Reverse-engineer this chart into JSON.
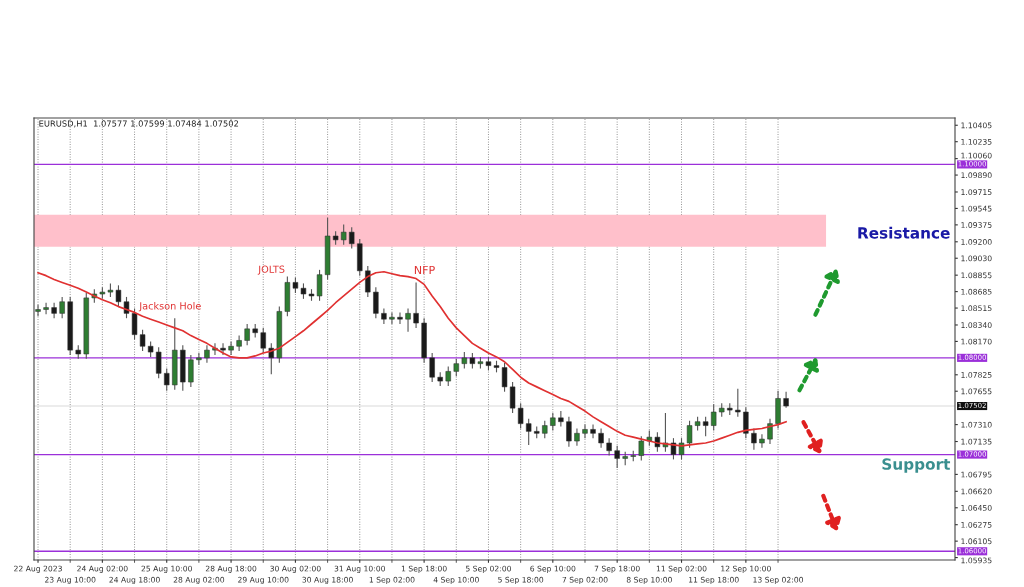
{
  "chart_data": {
    "type": "candlestick",
    "categories": [
      "22 Aug 2023",
      null,
      null,
      null,
      "23 Aug 10:00",
      null,
      null,
      null,
      "24 Aug 02:00",
      null,
      null,
      null,
      "24 Aug 18:00",
      null,
      null,
      null,
      "25 Aug 10:00",
      null,
      null,
      null,
      "28 Aug 02:00",
      null,
      null,
      null,
      "28 Aug 18:00",
      null,
      null,
      null,
      "29 Aug 10:00",
      null,
      null,
      null,
      "30 Aug 02:00",
      null,
      null,
      null,
      "30 Aug 18:00",
      null,
      null,
      null,
      "31 Aug 10:00",
      null,
      null,
      null,
      "1 Sep 02:00",
      null,
      null,
      null,
      "1 Sep 18:00",
      null,
      null,
      null,
      "4 Sep 10:00",
      null,
      null,
      null,
      "5 Sep 02:00",
      null,
      null,
      null,
      "5 Sep 18:00",
      null,
      null,
      null,
      "6 Sep 10:00",
      null,
      null,
      null,
      "7 Sep 02:00",
      null,
      null,
      null,
      "7 Sep 18:00",
      null,
      null,
      null,
      "8 Sep 10:00",
      null,
      null,
      null,
      "11 Sep 02:00",
      null,
      null,
      null,
      "11 Sep 18:00",
      null,
      null,
      null,
      "12 Sep 10:00",
      null,
      null,
      null,
      "13 Sep 02:00",
      null,
      null,
      null,
      null,
      null,
      null,
      null,
      null,
      null,
      null,
      null,
      null,
      null,
      null,
      null,
      null,
      null,
      null,
      null,
      null,
      null
    ],
    "ohlc": [
      [
        1.0848,
        1.0855,
        1.0843,
        1.085
      ],
      [
        1.085,
        1.0857,
        1.0845,
        1.0852
      ],
      [
        1.0852,
        1.0857,
        1.0841,
        1.0846
      ],
      [
        1.0846,
        1.0863,
        1.0841,
        1.0858
      ],
      [
        1.0858,
        1.0863,
        1.0803,
        1.0808
      ],
      [
        1.0808,
        1.0813,
        1.0799,
        1.0804
      ],
      [
        1.0804,
        1.0867,
        1.0799,
        1.0862
      ],
      [
        1.0862,
        1.0871,
        1.0857,
        1.0866
      ],
      [
        1.0866,
        1.0873,
        1.0861,
        1.0868
      ],
      [
        1.0868,
        1.0877,
        1.0863,
        1.087
      ],
      [
        1.087,
        1.0875,
        1.0853,
        1.0858
      ],
      [
        1.0858,
        1.0863,
        1.0841,
        1.0846
      ],
      [
        1.0846,
        1.0851,
        1.0819,
        1.0824
      ],
      [
        1.0824,
        1.0829,
        1.0807,
        1.0812
      ],
      [
        1.0812,
        1.0817,
        1.0801,
        1.0806
      ],
      [
        1.0806,
        1.0811,
        1.0779,
        1.0784
      ],
      [
        1.0784,
        1.0789,
        1.0766,
        1.0772
      ],
      [
        1.0772,
        1.0841,
        1.0767,
        1.0808
      ],
      [
        1.0808,
        1.0813,
        1.0766,
        1.0775
      ],
      [
        1.0775,
        1.0803,
        1.077,
        1.0798
      ],
      [
        1.0798,
        1.0805,
        1.0793,
        1.08
      ],
      [
        1.08,
        1.0813,
        1.0795,
        1.0808
      ],
      [
        1.0808,
        1.0815,
        1.0803,
        1.081
      ],
      [
        1.081,
        1.0815,
        1.0803,
        1.0808
      ],
      [
        1.0808,
        1.0817,
        1.0803,
        1.0812
      ],
      [
        1.0812,
        1.0823,
        1.0807,
        1.0818
      ],
      [
        1.0818,
        1.0835,
        1.0813,
        1.083
      ],
      [
        1.083,
        1.0835,
        1.0821,
        1.0826
      ],
      [
        1.0826,
        1.0831,
        1.0805,
        1.081
      ],
      [
        1.081,
        1.0815,
        1.0783,
        1.08
      ],
      [
        1.08,
        1.0853,
        1.0795,
        1.0848
      ],
      [
        1.0848,
        1.0884,
        1.0843,
        1.0878
      ],
      [
        1.0878,
        1.0883,
        1.0867,
        1.0872
      ],
      [
        1.0872,
        1.0877,
        1.0861,
        1.0866
      ],
      [
        1.0866,
        1.0871,
        1.0859,
        1.0864
      ],
      [
        1.0864,
        1.0891,
        1.0859,
        1.0886
      ],
      [
        1.0886,
        1.0945,
        1.0881,
        1.0926
      ],
      [
        1.0926,
        1.0931,
        1.0917,
        1.0922
      ],
      [
        1.0922,
        1.0938,
        1.0917,
        1.093
      ],
      [
        1.093,
        1.0935,
        1.0913,
        1.0918
      ],
      [
        1.0918,
        1.0923,
        1.0885,
        1.089
      ],
      [
        1.089,
        1.0895,
        1.0863,
        1.0868
      ],
      [
        1.0868,
        1.0873,
        1.0841,
        1.0846
      ],
      [
        1.0846,
        1.0851,
        1.0835,
        1.084
      ],
      [
        1.084,
        1.0847,
        1.0835,
        1.0842
      ],
      [
        1.0842,
        1.0847,
        1.0835,
        1.084
      ],
      [
        1.084,
        1.0851,
        1.0827,
        1.0846
      ],
      [
        1.0846,
        1.0878,
        1.0831,
        1.0836
      ],
      [
        1.0836,
        1.0841,
        1.0795,
        1.08
      ],
      [
        1.08,
        1.0805,
        1.0775,
        1.078
      ],
      [
        1.078,
        1.0785,
        1.0771,
        1.0776
      ],
      [
        1.0776,
        1.0791,
        1.0771,
        1.0786
      ],
      [
        1.0786,
        1.0799,
        1.0781,
        1.0794
      ],
      [
        1.0794,
        1.0806,
        1.0789,
        1.08
      ],
      [
        1.08,
        1.0805,
        1.0789,
        1.0794
      ],
      [
        1.0794,
        1.0801,
        1.0789,
        1.0796
      ],
      [
        1.0796,
        1.0801,
        1.0787,
        1.0792
      ],
      [
        1.0792,
        1.0797,
        1.0785,
        1.079
      ],
      [
        1.079,
        1.0795,
        1.0765,
        1.077
      ],
      [
        1.077,
        1.0775,
        1.0743,
        1.0748
      ],
      [
        1.0748,
        1.0753,
        1.0727,
        1.0732
      ],
      [
        1.0732,
        1.0737,
        1.071,
        1.0724
      ],
      [
        1.0724,
        1.0729,
        1.0717,
        1.0722
      ],
      [
        1.0722,
        1.0735,
        1.0717,
        1.073
      ],
      [
        1.073,
        1.0743,
        1.0725,
        1.0738
      ],
      [
        1.0738,
        1.0745,
        1.0729,
        1.0734
      ],
      [
        1.0734,
        1.0739,
        1.0708,
        1.0714
      ],
      [
        1.0714,
        1.0727,
        1.0709,
        1.0722
      ],
      [
        1.0722,
        1.0731,
        1.0717,
        1.0726
      ],
      [
        1.0726,
        1.0731,
        1.0717,
        1.0722
      ],
      [
        1.0722,
        1.0727,
        1.0707,
        1.0712
      ],
      [
        1.0712,
        1.0717,
        1.0699,
        1.0704
      ],
      [
        1.0704,
        1.0709,
        1.0686,
        1.0696
      ],
      [
        1.0696,
        1.0703,
        1.0689,
        1.0698
      ],
      [
        1.0698,
        1.0704,
        1.0693,
        1.0699
      ],
      [
        1.0699,
        1.0719,
        1.0694,
        1.0714
      ],
      [
        1.0714,
        1.0725,
        1.0709,
        1.0718
      ],
      [
        1.0718,
        1.0723,
        1.0703,
        1.0708
      ],
      [
        1.0708,
        1.0743,
        1.0703,
        1.0712
      ],
      [
        1.0712,
        1.0717,
        1.0695,
        1.07
      ],
      [
        1.07,
        1.0717,
        1.0695,
        1.0712
      ],
      [
        1.0712,
        1.0735,
        1.0707,
        1.073
      ],
      [
        1.073,
        1.0739,
        1.0725,
        1.0734
      ],
      [
        1.0734,
        1.0739,
        1.0719,
        1.073
      ],
      [
        1.073,
        1.0752,
        1.0725,
        1.0744
      ],
      [
        1.0744,
        1.0753,
        1.0739,
        1.0748
      ],
      [
        1.0748,
        1.0753,
        1.0741,
        1.0746
      ],
      [
        1.0746,
        1.0768,
        1.0739,
        1.0744
      ],
      [
        1.0744,
        1.0749,
        1.0717,
        1.0722
      ],
      [
        1.0722,
        1.0727,
        1.0705,
        1.0712
      ],
      [
        1.0712,
        1.0721,
        1.0707,
        1.0716
      ],
      [
        1.0716,
        1.0737,
        1.0711,
        1.0732
      ],
      [
        1.0732,
        1.0766,
        1.0727,
        1.0758
      ],
      [
        1.0758,
        1.0765,
        1.07484,
        1.07502
      ],
      null,
      null,
      null,
      null,
      null,
      null,
      null,
      null,
      null,
      null,
      null,
      null,
      null,
      null,
      null,
      null,
      null,
      null,
      null,
      null
    ],
    "series": [
      {
        "type": "line",
        "color": "#e03131",
        "values": [
          1.0888,
          1.0885,
          1.0881,
          1.0878,
          1.0875,
          1.0872,
          1.0868,
          1.0864,
          1.086,
          1.0857,
          1.0853,
          1.085,
          1.0847,
          1.0843,
          1.084,
          1.0837,
          1.0834,
          1.0831,
          1.0828,
          1.0823,
          1.0819,
          1.0815,
          1.081,
          1.0805,
          1.0801,
          1.08,
          1.08,
          1.0802,
          1.0805,
          1.0807,
          1.081,
          1.0816,
          1.0822,
          1.0828,
          1.0835,
          1.0842,
          1.0849,
          1.0857,
          1.0864,
          1.0871,
          1.0878,
          1.0884,
          1.0888,
          1.0889,
          1.0887,
          1.0885,
          1.0884,
          1.0882,
          1.0876,
          1.0864,
          1.0853,
          1.0841,
          1.0831,
          1.0823,
          1.0815,
          1.081,
          1.0805,
          1.0801,
          1.0796,
          1.0788,
          1.078,
          1.0774,
          1.077,
          1.0766,
          1.0762,
          1.0758,
          1.0755,
          1.075,
          1.0745,
          1.0739,
          1.0734,
          1.0729,
          1.0724,
          1.072,
          1.0718,
          1.0716,
          1.0714,
          1.0712,
          1.0711,
          1.071,
          1.0709,
          1.071,
          1.0711,
          1.0712,
          1.0714,
          1.0717,
          1.072,
          1.0723,
          1.0725,
          1.0726,
          1.0727,
          1.0729,
          1.0731,
          1.0734,
          null,
          null,
          null,
          null,
          null,
          null,
          null,
          null,
          null,
          null,
          null,
          null,
          null,
          null,
          null,
          null,
          null,
          null,
          null,
          null
        ]
      }
    ],
    "ylim": [
      1.0591,
      1.1048
    ],
    "yticks": [
      1.10405,
      1.10235,
      {
        "value": 1.1006,
        "label": "1.10060"
      },
      {
        "value": 1.0989,
        "label": "1.09890"
      },
      1.09715,
      1.09545,
      1.09375,
      {
        "value": 1.092,
        "label": "1.09200"
      },
      {
        "value": 1.0903,
        "label": "1.09030"
      },
      1.08855,
      1.08685,
      1.08515,
      {
        "value": 1.0834,
        "label": "1.08340"
      },
      {
        "value": 1.0817,
        "label": "1.08170"
      },
      1.07825,
      1.07655,
      {
        "value": 1.0731,
        "label": "1.07310"
      },
      1.07135,
      1.06795,
      {
        "value": 1.0662,
        "label": "1.06620"
      },
      {
        "value": 1.0645,
        "label": "1.06450"
      },
      1.06275,
      1.06105,
      1.05935
    ],
    "grid": "x",
    "ref_lines": [
      {
        "axis": "y",
        "value": 1.1,
        "label": "1.10000",
        "color": "#9b30d9"
      },
      {
        "axis": "y",
        "value": 1.08,
        "label": "1.08000",
        "color": "#9b30d9"
      },
      {
        "axis": "y",
        "value": 1.07,
        "label": "1.07000",
        "color": "#9b30d9"
      },
      {
        "axis": "y",
        "value": 1.06,
        "label": "1.06000",
        "color": "#9b30d9"
      },
      {
        "axis": "y",
        "value": 1.07502,
        "label": "1.07502",
        "color": "#d9d9d9"
      }
    ],
    "bands": [
      {
        "axis": "y",
        "from": 1.0915,
        "to": 1.0948,
        "color": "#ffc0cb"
      }
    ],
    "annotations": [
      "EURUSD,H1  1.07577 1.07599 1.07484 1.07502",
      "Jackson Hole",
      "JOLTS",
      "NFP",
      "Resistance",
      "Support"
    ]
  }
}
